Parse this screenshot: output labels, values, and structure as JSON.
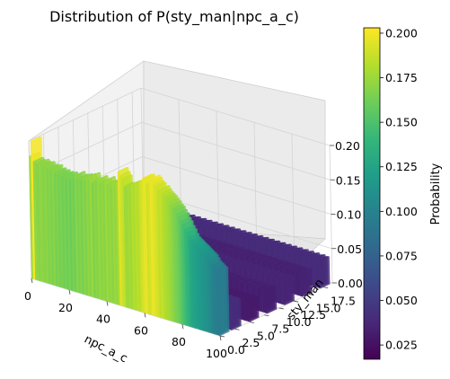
{
  "chart_data": {
    "type": "bar3d",
    "title": "Distribution of P(sty_man|npc_a_c)",
    "xlabel": "npc_a_c",
    "ylabel": "sty_man",
    "zlabel": "",
    "xlim": [
      0,
      100
    ],
    "ylim": [
      0,
      19
    ],
    "zlim": [
      0,
      0.2
    ],
    "x_ticks": [
      "0",
      "20",
      "40",
      "60",
      "80",
      "100"
    ],
    "y_ticks": [
      "0.0",
      "2.5",
      "5.0",
      "7.5",
      "10.0",
      "12.5",
      "15.0",
      "17.5"
    ],
    "z_ticks": [
      "0.00",
      "0.05",
      "0.10",
      "0.15",
      "0.20"
    ],
    "colorbar": {
      "label": "Probability",
      "range": [
        0.017,
        0.203
      ],
      "ticks": [
        "0.025",
        "0.050",
        "0.075",
        "0.100",
        "0.125",
        "0.150",
        "0.175",
        "0.200"
      ],
      "colormap": [
        "#440154",
        "#482878",
        "#3e4989",
        "#31688e",
        "#26828e",
        "#1f9e89",
        "#35b779",
        "#6ece58",
        "#b5de2b",
        "#fde725"
      ]
    },
    "series": [
      {
        "sty_man": 0,
        "values": [
          0.178,
          0.201,
          0.172,
          0.17,
          0.168,
          0.172,
          0.17,
          0.168,
          0.171,
          0.167,
          0.169,
          0.166,
          0.17,
          0.164,
          0.167,
          0.163,
          0.166,
          0.162,
          0.165,
          0.161,
          0.166,
          0.16,
          0.165,
          0.162,
          0.17,
          0.165,
          0.168,
          0.164,
          0.17,
          0.166,
          0.172,
          0.168,
          0.175,
          0.166,
          0.17,
          0.168,
          0.174,
          0.169,
          0.172,
          0.169,
          0.176,
          0.171,
          0.173,
          0.17,
          0.175,
          0.172,
          0.178,
          0.195,
          0.19,
          0.186,
          0.176,
          0.175,
          0.178,
          0.176,
          0.182,
          0.18,
          0.184,
          0.182,
          0.188,
          0.192,
          0.196,
          0.197,
          0.189,
          0.192,
          0.198,
          0.196,
          0.192,
          0.19,
          0.185,
          0.187,
          0.183,
          0.18,
          0.178,
          0.176,
          0.173,
          0.17,
          0.166,
          0.164,
          0.16,
          0.156,
          0.15,
          0.146,
          0.14,
          0.136,
          0.13,
          0.126,
          0.124,
          0.122,
          0.12,
          0.118,
          0.116,
          0.114,
          0.112,
          0.11,
          0.108,
          0.104,
          0.1,
          0.098,
          0.096,
          0.094
        ]
      },
      {
        "sty_man": 2,
        "values": [
          0.041,
          0.04,
          0.042,
          0.041,
          0.04,
          0.041,
          0.04,
          0.039,
          0.041,
          0.04,
          0.04,
          0.041,
          0.04,
          0.04,
          0.041,
          0.04,
          0.04,
          0.041,
          0.04,
          0.04,
          0.041,
          0.04,
          0.04,
          0.041,
          0.04,
          0.04,
          0.041,
          0.04,
          0.04,
          0.041,
          0.04,
          0.04,
          0.041,
          0.04,
          0.04,
          0.041,
          0.04,
          0.04,
          0.041,
          0.04,
          0.04,
          0.041,
          0.04,
          0.04,
          0.041,
          0.04,
          0.04,
          0.041,
          0.04,
          0.04,
          0.041,
          0.04,
          0.04,
          0.041,
          0.04,
          0.04,
          0.041,
          0.04,
          0.04,
          0.041,
          0.04,
          0.04,
          0.041,
          0.04,
          0.04,
          0.041,
          0.04,
          0.04,
          0.041,
          0.04,
          0.04,
          0.041,
          0.04,
          0.04,
          0.041,
          0.04,
          0.04,
          0.041,
          0.04,
          0.04,
          0.041,
          0.04,
          0.04,
          0.041,
          0.04,
          0.04,
          0.041,
          0.04,
          0.04,
          0.041,
          0.04,
          0.04,
          0.041,
          0.04,
          0.04,
          0.041,
          0.04,
          0.04,
          0.041,
          0.04
        ]
      },
      {
        "sty_man": 5,
        "values": [
          0.03,
          0.031,
          0.03,
          0.03,
          0.031,
          0.03,
          0.03,
          0.031,
          0.03,
          0.03,
          0.031,
          0.03,
          0.03,
          0.031,
          0.03,
          0.03,
          0.031,
          0.03,
          0.03,
          0.031,
          0.03,
          0.03,
          0.031,
          0.03,
          0.03,
          0.031,
          0.03,
          0.03,
          0.031,
          0.03,
          0.03,
          0.031,
          0.03,
          0.03,
          0.031,
          0.03,
          0.03,
          0.031,
          0.03,
          0.03,
          0.031,
          0.03,
          0.03,
          0.031,
          0.03,
          0.03,
          0.031,
          0.03,
          0.03,
          0.031,
          0.03,
          0.03,
          0.031,
          0.03,
          0.03,
          0.031,
          0.03,
          0.03,
          0.031,
          0.03,
          0.03,
          0.031,
          0.03,
          0.03,
          0.031,
          0.03,
          0.03,
          0.031,
          0.03,
          0.03,
          0.031,
          0.03,
          0.03,
          0.031,
          0.03,
          0.03,
          0.031,
          0.03,
          0.03,
          0.031,
          0.03,
          0.03,
          0.031,
          0.03,
          0.03,
          0.031,
          0.03,
          0.03,
          0.031,
          0.03,
          0.03,
          0.031,
          0.03,
          0.03,
          0.031,
          0.03,
          0.03,
          0.031,
          0.03,
          0.03
        ]
      },
      {
        "sty_man": 8,
        "values": [
          0.033,
          0.034,
          0.032,
          0.033,
          0.034,
          0.032,
          0.033,
          0.034,
          0.032,
          0.033,
          0.034,
          0.032,
          0.033,
          0.034,
          0.032,
          0.033,
          0.034,
          0.032,
          0.033,
          0.034,
          0.032,
          0.033,
          0.034,
          0.032,
          0.033,
          0.034,
          0.032,
          0.033,
          0.034,
          0.032,
          0.033,
          0.034,
          0.032,
          0.033,
          0.034,
          0.032,
          0.033,
          0.034,
          0.032,
          0.033,
          0.034,
          0.032,
          0.033,
          0.034,
          0.032,
          0.033,
          0.034,
          0.032,
          0.033,
          0.034,
          0.032,
          0.033,
          0.034,
          0.032,
          0.033,
          0.034,
          0.032,
          0.033,
          0.034,
          0.032,
          0.033,
          0.034,
          0.032,
          0.033,
          0.034,
          0.032,
          0.033,
          0.034,
          0.032,
          0.033,
          0.034,
          0.032,
          0.033,
          0.034,
          0.032,
          0.033,
          0.034,
          0.032,
          0.033,
          0.034,
          0.032,
          0.033,
          0.034,
          0.032,
          0.033,
          0.034,
          0.032,
          0.033,
          0.034,
          0.032,
          0.033,
          0.034,
          0.032,
          0.033,
          0.034,
          0.032,
          0.033,
          0.034,
          0.032,
          0.033
        ]
      },
      {
        "sty_man": 11,
        "values": [
          0.036,
          0.035,
          0.037,
          0.036,
          0.035,
          0.037,
          0.036,
          0.035,
          0.037,
          0.036,
          0.035,
          0.037,
          0.036,
          0.035,
          0.037,
          0.036,
          0.035,
          0.037,
          0.036,
          0.035,
          0.037,
          0.036,
          0.035,
          0.037,
          0.036,
          0.035,
          0.037,
          0.036,
          0.035,
          0.037,
          0.036,
          0.035,
          0.037,
          0.036,
          0.035,
          0.037,
          0.036,
          0.035,
          0.037,
          0.036,
          0.035,
          0.037,
          0.036,
          0.035,
          0.037,
          0.036,
          0.035,
          0.037,
          0.036,
          0.035,
          0.037,
          0.036,
          0.035,
          0.037,
          0.036,
          0.035,
          0.037,
          0.036,
          0.035,
          0.037,
          0.036,
          0.035,
          0.037,
          0.036,
          0.035,
          0.037,
          0.036,
          0.035,
          0.037,
          0.036,
          0.035,
          0.037,
          0.036,
          0.035,
          0.037,
          0.036,
          0.035,
          0.037,
          0.036,
          0.035,
          0.037,
          0.036,
          0.035,
          0.037,
          0.036,
          0.035,
          0.037,
          0.036,
          0.035,
          0.037,
          0.036,
          0.035,
          0.037,
          0.036,
          0.035,
          0.037,
          0.036,
          0.035,
          0.037,
          0.036
        ]
      },
      {
        "sty_man": 14,
        "values": [
          0.034,
          0.033,
          0.034,
          0.035,
          0.033,
          0.034,
          0.035,
          0.033,
          0.034,
          0.035,
          0.033,
          0.034,
          0.035,
          0.033,
          0.034,
          0.035,
          0.033,
          0.034,
          0.035,
          0.033,
          0.034,
          0.035,
          0.033,
          0.034,
          0.035,
          0.033,
          0.034,
          0.035,
          0.033,
          0.034,
          0.035,
          0.033,
          0.034,
          0.035,
          0.033,
          0.034,
          0.035,
          0.033,
          0.034,
          0.035,
          0.033,
          0.034,
          0.035,
          0.033,
          0.034,
          0.035,
          0.033,
          0.034,
          0.035,
          0.033,
          0.034,
          0.035,
          0.033,
          0.034,
          0.035,
          0.033,
          0.034,
          0.035,
          0.033,
          0.034,
          0.035,
          0.033,
          0.034,
          0.035,
          0.033,
          0.034,
          0.035,
          0.033,
          0.034,
          0.035,
          0.033,
          0.034,
          0.035,
          0.033,
          0.034,
          0.035,
          0.033,
          0.034,
          0.035,
          0.033,
          0.034,
          0.035,
          0.033,
          0.034,
          0.035,
          0.033,
          0.034,
          0.035,
          0.033,
          0.034,
          0.035,
          0.033,
          0.034,
          0.035,
          0.033,
          0.034,
          0.035,
          0.033,
          0.034,
          0.035
        ]
      },
      {
        "sty_man": 17,
        "values": [
          0.04,
          0.041,
          0.039,
          0.04,
          0.041,
          0.039,
          0.04,
          0.041,
          0.039,
          0.04,
          0.041,
          0.039,
          0.04,
          0.041,
          0.039,
          0.04,
          0.041,
          0.039,
          0.04,
          0.041,
          0.039,
          0.04,
          0.041,
          0.039,
          0.04,
          0.041,
          0.039,
          0.04,
          0.041,
          0.039,
          0.04,
          0.041,
          0.039,
          0.04,
          0.041,
          0.039,
          0.04,
          0.041,
          0.039,
          0.04,
          0.041,
          0.039,
          0.04,
          0.041,
          0.039,
          0.04,
          0.041,
          0.039,
          0.04,
          0.041,
          0.039,
          0.04,
          0.041,
          0.039,
          0.04,
          0.041,
          0.039,
          0.04,
          0.041,
          0.039,
          0.04,
          0.041,
          0.039,
          0.04,
          0.041,
          0.039,
          0.04,
          0.041,
          0.039,
          0.04,
          0.041,
          0.039,
          0.04,
          0.041,
          0.039,
          0.04,
          0.041,
          0.039,
          0.04,
          0.041,
          0.039,
          0.04,
          0.041,
          0.039,
          0.04,
          0.041,
          0.039,
          0.04,
          0.041,
          0.039,
          0.04,
          0.041,
          0.039,
          0.04,
          0.041,
          0.039,
          0.04,
          0.041,
          0.039,
          0.04
        ]
      }
    ]
  }
}
